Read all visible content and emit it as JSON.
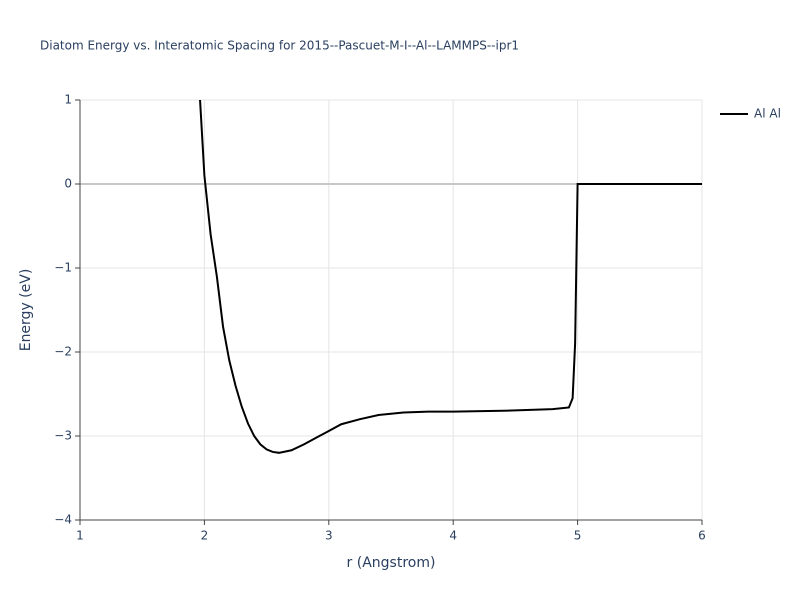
{
  "chart_data": {
    "type": "line",
    "title": "Diatom Energy vs. Interatomic Spacing for 2015--Pascuet-M-I--Al--LAMMPS--ipr1",
    "x_label": "r (Angstrom)",
    "y_label": "Energy (eV)",
    "series": [
      {
        "name": "Al Al",
        "color": "#000000",
        "x": [
          1.965,
          2.0,
          2.05,
          2.1,
          2.15,
          2.2,
          2.25,
          2.3,
          2.35,
          2.4,
          2.45,
          2.5,
          2.55,
          2.6,
          2.7,
          2.8,
          2.9,
          3.0,
          3.1,
          3.25,
          3.4,
          3.6,
          3.8,
          4.0,
          4.4,
          4.8,
          4.93,
          4.96,
          4.98,
          5.0,
          6.0
        ],
        "values": [
          1.0,
          0.1,
          -0.6,
          -1.1,
          -1.7,
          -2.1,
          -2.4,
          -2.65,
          -2.85,
          -3.0,
          -3.1,
          -3.16,
          -3.19,
          -3.2,
          -3.17,
          -3.1,
          -3.02,
          -2.94,
          -2.86,
          -2.8,
          -2.75,
          -2.72,
          -2.71,
          -2.71,
          -2.7,
          -2.68,
          -2.66,
          -2.55,
          -1.9,
          0,
          0
        ]
      }
    ],
    "xlim": [
      1,
      6
    ],
    "xticks": [
      1,
      2,
      3,
      4,
      5,
      6
    ],
    "ylim": [
      -4,
      1
    ],
    "yticks": [
      {
        "value": -4,
        "label": "−4"
      },
      {
        "value": -3,
        "label": "−3"
      },
      {
        "value": -2,
        "label": "−2"
      },
      {
        "value": -1,
        "label": "−1"
      },
      0,
      1
    ],
    "grid": true,
    "legend": "right"
  }
}
